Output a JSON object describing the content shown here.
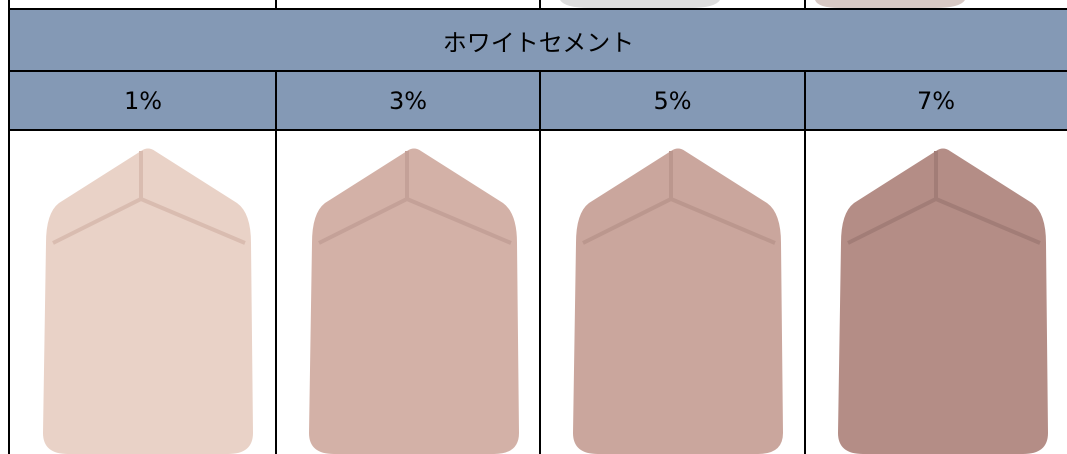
{
  "header": {
    "title": "ホワイトセメント"
  },
  "table": {
    "columns": [
      "1%",
      "3%",
      "5%",
      "7%"
    ]
  }
}
